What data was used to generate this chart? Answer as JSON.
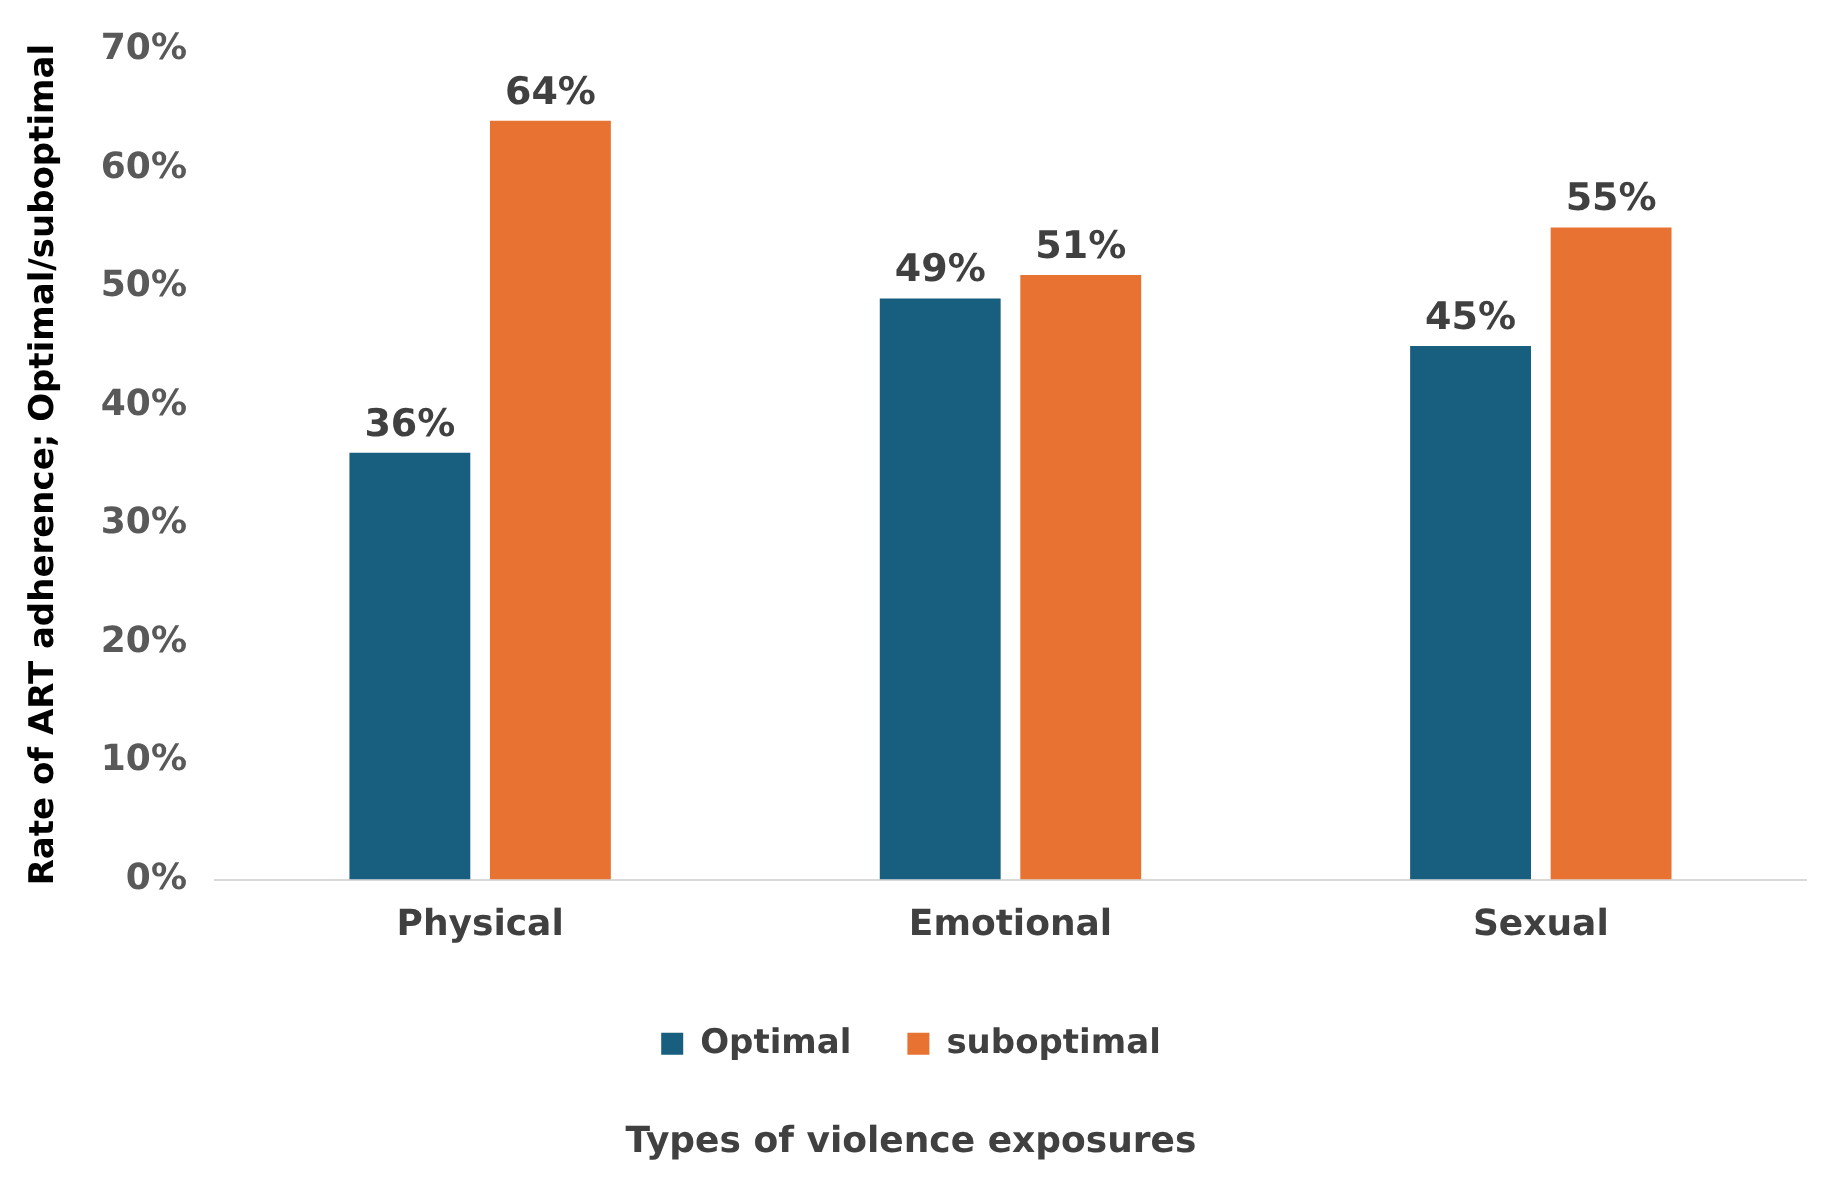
{
  "chart_data": {
    "type": "bar",
    "xlabel": "Types of violence exposures",
    "ylabel": "Rate of ART adherence; Optimal/suboptimal",
    "categories": [
      "Physical",
      "Emotional",
      "Sexual"
    ],
    "series": [
      {
        "name": "Optimal",
        "color": "#175e7f",
        "values": [
          36,
          49,
          45
        ],
        "value_labels": [
          "36%",
          "49%",
          "45%"
        ]
      },
      {
        "name": "suboptimal",
        "color": "#e87232",
        "values": [
          64,
          51,
          55
        ],
        "value_labels": [
          "64%",
          "51%",
          "55%"
        ]
      }
    ],
    "ylim": [
      0,
      70
    ],
    "yticks": [
      {
        "value": 0,
        "label": "0%"
      },
      {
        "value": 10,
        "label": "10%"
      },
      {
        "value": 20,
        "label": "20%"
      },
      {
        "value": 30,
        "label": "30%"
      },
      {
        "value": 40,
        "label": "40%"
      },
      {
        "value": 50,
        "label": "50%"
      },
      {
        "value": 60,
        "label": "60%"
      },
      {
        "value": 70,
        "label": "70%"
      }
    ],
    "grid": false,
    "legend": "bottom"
  }
}
